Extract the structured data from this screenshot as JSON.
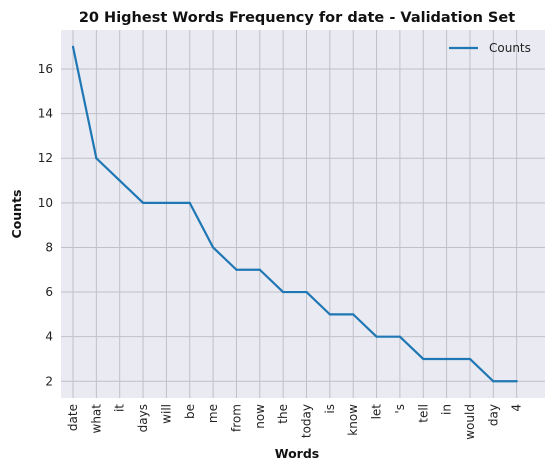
{
  "chart_data": {
    "type": "line",
    "title": "20 Highest Words Frequency for date - Validation Set",
    "xlabel": "Words",
    "ylabel": "Counts",
    "categories": [
      "date",
      "what",
      "it",
      "days",
      "will",
      "be",
      "me",
      "from",
      "now",
      "the",
      "today",
      "is",
      "know",
      "let",
      "'s",
      "tell",
      "in",
      "would",
      "day",
      "4"
    ],
    "series": [
      {
        "name": "Counts",
        "values": [
          17,
          12,
          11,
          10,
          10,
          10,
          8,
          7,
          7,
          6,
          6,
          5,
          5,
          4,
          4,
          3,
          3,
          3,
          2,
          2
        ]
      }
    ],
    "yticks": [
      2,
      4,
      6,
      8,
      10,
      12,
      14,
      16
    ],
    "ylim": [
      1.25,
      17.75
    ],
    "grid": true,
    "legend_position": "top-right",
    "colors": {
      "line": "#1f77b4",
      "plot_bg": "#eaeaf2",
      "grid": "#c0c0c8"
    }
  }
}
